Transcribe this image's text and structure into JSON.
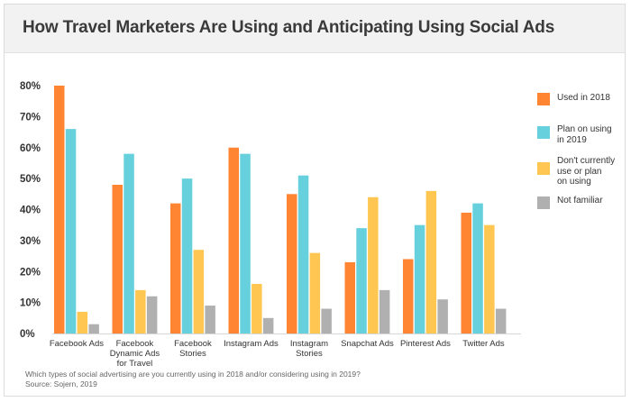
{
  "chart_data": {
    "type": "bar",
    "title": "How Travel Marketers Are Using and Anticipating Using Social Ads",
    "categories": [
      "Facebook Ads",
      "Facebook Dynamic Ads for Travel",
      "Facebook Stories",
      "Instagram Ads",
      "Instagram Stories",
      "Snapchat Ads",
      "Pinterest Ads",
      "Twitter Ads"
    ],
    "category_lines": [
      [
        "Facebook Ads"
      ],
      [
        "Facebook",
        "Dynamic Ads",
        "for Travel"
      ],
      [
        "Facebook",
        "Stories"
      ],
      [
        "Instagram Ads"
      ],
      [
        "Instagram",
        "Stories"
      ],
      [
        "Snapchat Ads"
      ],
      [
        "Pinterest Ads"
      ],
      [
        "Twitter Ads"
      ]
    ],
    "series": [
      {
        "name": "Used in 2018",
        "color": "#ff8533",
        "values": [
          80,
          48,
          42,
          60,
          45,
          23,
          24,
          39
        ]
      },
      {
        "name": "Plan on using in 2019",
        "color": "#66d1dd",
        "values": [
          66,
          58,
          50,
          58,
          51,
          34,
          35,
          42
        ]
      },
      {
        "name": "Don't currently use or plan on using",
        "color": "#ffc752",
        "values": [
          7,
          14,
          27,
          16,
          26,
          44,
          46,
          35
        ]
      },
      {
        "name": "Not familiar",
        "color": "#b0b0b0",
        "values": [
          3,
          12,
          9,
          5,
          8,
          14,
          11,
          8
        ]
      }
    ],
    "ylim": [
      0,
      80
    ],
    "yticks": [
      "0%",
      "10%",
      "20%",
      "30%",
      "40%",
      "50%",
      "60%",
      "70%",
      "80%"
    ],
    "grid": false,
    "legend_position": "right"
  },
  "legend": [
    {
      "lines": [
        "Used in 2018"
      ],
      "color": "#ff8533"
    },
    {
      "lines": [
        "Plan on using",
        "in 2019"
      ],
      "color": "#66d1dd"
    },
    {
      "lines": [
        "Don't currently",
        "use or plan",
        "on using"
      ],
      "color": "#ffc752"
    },
    {
      "lines": [
        "Not familiar"
      ],
      "color": "#b0b0b0"
    }
  ],
  "footnote": {
    "question": "Which types of social advertising are you currently using in 2018 and/or considering using in 2019?",
    "source": "Source: Sojern, 2019"
  }
}
